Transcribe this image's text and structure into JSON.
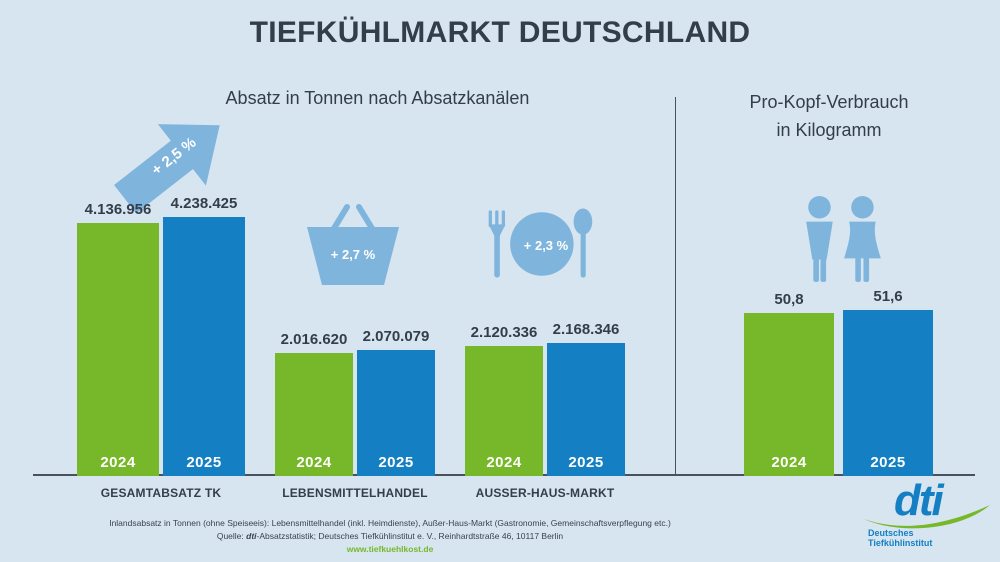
{
  "header": {
    "title": "TIEFKÜHLMARKT DEUTSCHLAND"
  },
  "chart_data": [
    {
      "type": "bar",
      "title": "Absatz in Tonnen nach Absatzkanälen",
      "unit": "Tonnen",
      "categories": [
        "GESAMTABSATZ TK",
        "LEBENSMITTELHANDEL",
        "AUSSER-HAUS-MARKT"
      ],
      "series": [
        {
          "name": "2024",
          "color": "#76b82a",
          "values": [
            4136956,
            2016620,
            2120336
          ],
          "display": [
            "4.136.956",
            "2.016.620",
            "2.120.336"
          ]
        },
        {
          "name": "2025",
          "color": "#1480c3",
          "values": [
            4238425,
            2070079,
            2168346
          ],
          "display": [
            "4.238.425",
            "2.070.079",
            "2.168.346"
          ]
        }
      ],
      "growth_badges": [
        {
          "label": "+ 2,5 %",
          "icon": "arrow-up-right"
        },
        {
          "label": "+ 2,7 %",
          "icon": "shopping-basket"
        },
        {
          "label": "+ 2,3 %",
          "icon": "plate-cutlery"
        }
      ],
      "ylim": [
        0,
        4238425
      ],
      "legend_position": "none",
      "grid": false
    },
    {
      "type": "bar",
      "title": "Pro-Kopf-Verbrauch in Kilogramm",
      "title_lines": [
        "Pro-Kopf-Verbrauch",
        "in Kilogramm"
      ],
      "unit": "Kilogramm",
      "categories": [
        ""
      ],
      "series": [
        {
          "name": "2024",
          "color": "#76b82a",
          "values": [
            50.8
          ],
          "display": [
            "50,8"
          ]
        },
        {
          "name": "2025",
          "color": "#1480c3",
          "values": [
            51.6
          ],
          "display": [
            "51,6"
          ]
        }
      ],
      "icon": "people",
      "ylim": [
        0,
        51.6
      ],
      "legend_position": "none",
      "grid": false
    }
  ],
  "footer": {
    "line1": "Inlandsabsatz in Tonnen (ohne Speiseeis): Lebensmittelhandel (inkl. Heimdienste), Außer-Haus-Markt (Gastronomie, Gemeinschaftsverpflegung etc.)",
    "line2_prefix": "Quelle: ",
    "line2_dti": "dti",
    "line2_rest": "-Absatzstatistik; Deutsches Tiefkühlinstitut e. V., Reinhardtstraße 46, 10117 Berlin",
    "website": "www.tiefkuehlkost.de"
  },
  "logo": {
    "brand": "dti",
    "line1": "Deutsches",
    "line2": "Tiefkühlinstitut"
  },
  "colors": {
    "background": "#d7e5f0",
    "green_2024": "#76b82a",
    "blue_2025": "#1480c3",
    "light_blue_icons": "#7fb5dc",
    "text_dark": "#333e4b",
    "link_green": "#76b82a"
  }
}
